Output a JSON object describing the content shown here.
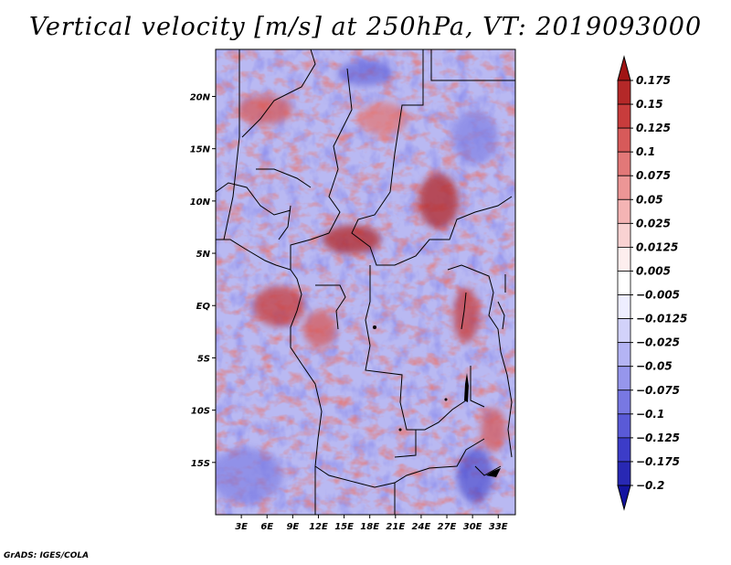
{
  "title": "Vertical velocity [m/s] at 250hPa, VT: 2019093000",
  "credit": "GrADS: IGES/COLA",
  "map": {
    "lat_labels": [
      "20N",
      "15N",
      "10N",
      "5N",
      "EQ",
      "5S",
      "10S",
      "15S"
    ],
    "lat_values": [
      20,
      15,
      10,
      5,
      0,
      -5,
      -10,
      -15
    ],
    "lon_labels": [
      "3E",
      "6E",
      "9E",
      "12E",
      "15E",
      "18E",
      "21E",
      "24E",
      "27E",
      "30E",
      "33E"
    ],
    "lon_values": [
      3,
      6,
      9,
      12,
      15,
      18,
      21,
      24,
      27,
      30,
      33
    ],
    "lon_range": [
      0,
      35
    ],
    "lat_range": [
      -20,
      24.5
    ]
  },
  "colorbar": {
    "labels": [
      "0.175",
      "0.15",
      "0.125",
      "0.1",
      "0.075",
      "0.05",
      "0.025",
      "0.0125",
      "0.005",
      "−0.005",
      "−0.0125",
      "−0.025",
      "−0.05",
      "−0.075",
      "−0.1",
      "−0.125",
      "−0.175",
      "−0.2"
    ],
    "colors": [
      "#a01414",
      "#b42828",
      "#c83c3c",
      "#d75a5a",
      "#e27878",
      "#ec9696",
      "#f4b4b4",
      "#f9d2d2",
      "#fdeeee",
      "#ffffff",
      "#eeeeff",
      "#d2d2fa",
      "#b4b4f4",
      "#9696ec",
      "#7878e2",
      "#5a5ad7",
      "#3c3cc8",
      "#2828b4",
      "#1414a0"
    ],
    "top_color": "#a01414",
    "bottom_color": "#1414a0"
  },
  "palette": {
    "red": "#c83232",
    "blue": "#3c3cc8",
    "white": "#ffffff",
    "border": "#000000"
  }
}
